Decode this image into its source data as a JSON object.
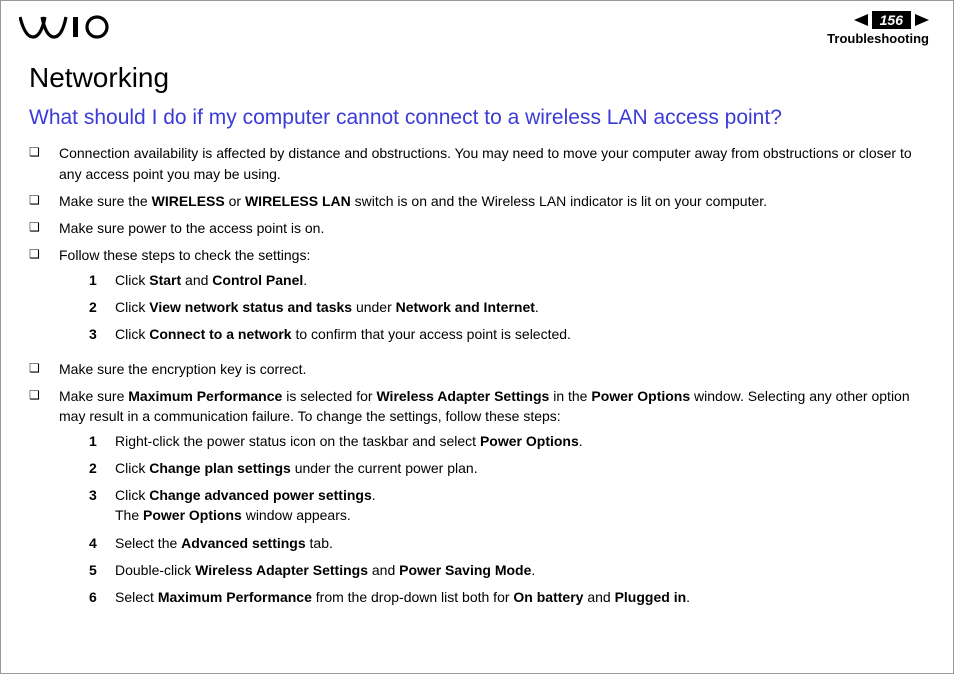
{
  "header": {
    "page_number": "156",
    "section": "Troubleshooting"
  },
  "content": {
    "h1": "Networking",
    "h2": "What should I do if my computer cannot connect to a wireless LAN access point?",
    "bullets": [
      {
        "text": "Connection availability is affected by distance and obstructions. You may need to move your computer away from obstructions or closer to any access point you may be using."
      },
      {
        "parts": [
          {
            "t": "Make sure the "
          },
          {
            "t": "WIRELESS",
            "b": true
          },
          {
            "t": " or "
          },
          {
            "t": "WIRELESS LAN",
            "b": true
          },
          {
            "t": " switch is on and the Wireless LAN indicator is lit on your computer."
          }
        ]
      },
      {
        "text": "Make sure power to the access point is on."
      },
      {
        "text": "Follow these steps to check the settings:",
        "steps": [
          {
            "n": "1",
            "parts": [
              {
                "t": "Click "
              },
              {
                "t": "Start",
                "b": true
              },
              {
                "t": " and "
              },
              {
                "t": "Control Panel",
                "b": true
              },
              {
                "t": "."
              }
            ]
          },
          {
            "n": "2",
            "parts": [
              {
                "t": "Click "
              },
              {
                "t": "View network status and tasks",
                "b": true
              },
              {
                "t": " under "
              },
              {
                "t": "Network and Internet",
                "b": true
              },
              {
                "t": "."
              }
            ]
          },
          {
            "n": "3",
            "parts": [
              {
                "t": "Click "
              },
              {
                "t": "Connect to a network",
                "b": true
              },
              {
                "t": " to confirm that your access point is selected."
              }
            ]
          }
        ]
      },
      {
        "text": "Make sure the encryption key is correct."
      },
      {
        "parts": [
          {
            "t": "Make sure "
          },
          {
            "t": "Maximum Performance",
            "b": true
          },
          {
            "t": " is selected for "
          },
          {
            "t": "Wireless Adapter Settings",
            "b": true
          },
          {
            "t": " in the "
          },
          {
            "t": "Power Options",
            "b": true
          },
          {
            "t": " window. Selecting any other option may result in a communication failure. To change the settings, follow these steps:"
          }
        ],
        "steps": [
          {
            "n": "1",
            "parts": [
              {
                "t": "Right-click the power status icon on the taskbar and select "
              },
              {
                "t": "Power Options",
                "b": true
              },
              {
                "t": "."
              }
            ]
          },
          {
            "n": "2",
            "parts": [
              {
                "t": "Click "
              },
              {
                "t": "Change plan settings",
                "b": true
              },
              {
                "t": " under the current power plan."
              }
            ]
          },
          {
            "n": "3",
            "parts": [
              {
                "t": "Click "
              },
              {
                "t": "Change advanced power settings",
                "b": true
              },
              {
                "t": ".\nThe "
              },
              {
                "t": "Power Options",
                "b": true
              },
              {
                "t": " window appears."
              }
            ]
          },
          {
            "n": "4",
            "parts": [
              {
                "t": "Select the "
              },
              {
                "t": "Advanced settings",
                "b": true
              },
              {
                "t": " tab."
              }
            ]
          },
          {
            "n": "5",
            "parts": [
              {
                "t": "Double-click "
              },
              {
                "t": "Wireless Adapter Settings",
                "b": true
              },
              {
                "t": " and "
              },
              {
                "t": "Power Saving Mode",
                "b": true
              },
              {
                "t": "."
              }
            ]
          },
          {
            "n": "6",
            "parts": [
              {
                "t": "Select "
              },
              {
                "t": "Maximum Performance",
                "b": true
              },
              {
                "t": " from the drop-down list both for "
              },
              {
                "t": "On battery",
                "b": true
              },
              {
                "t": " and "
              },
              {
                "t": "Plugged in",
                "b": true
              },
              {
                "t": "."
              }
            ]
          }
        ]
      }
    ]
  },
  "style": {
    "h2_color": "#3b3bd8",
    "body_font": "Arial"
  }
}
